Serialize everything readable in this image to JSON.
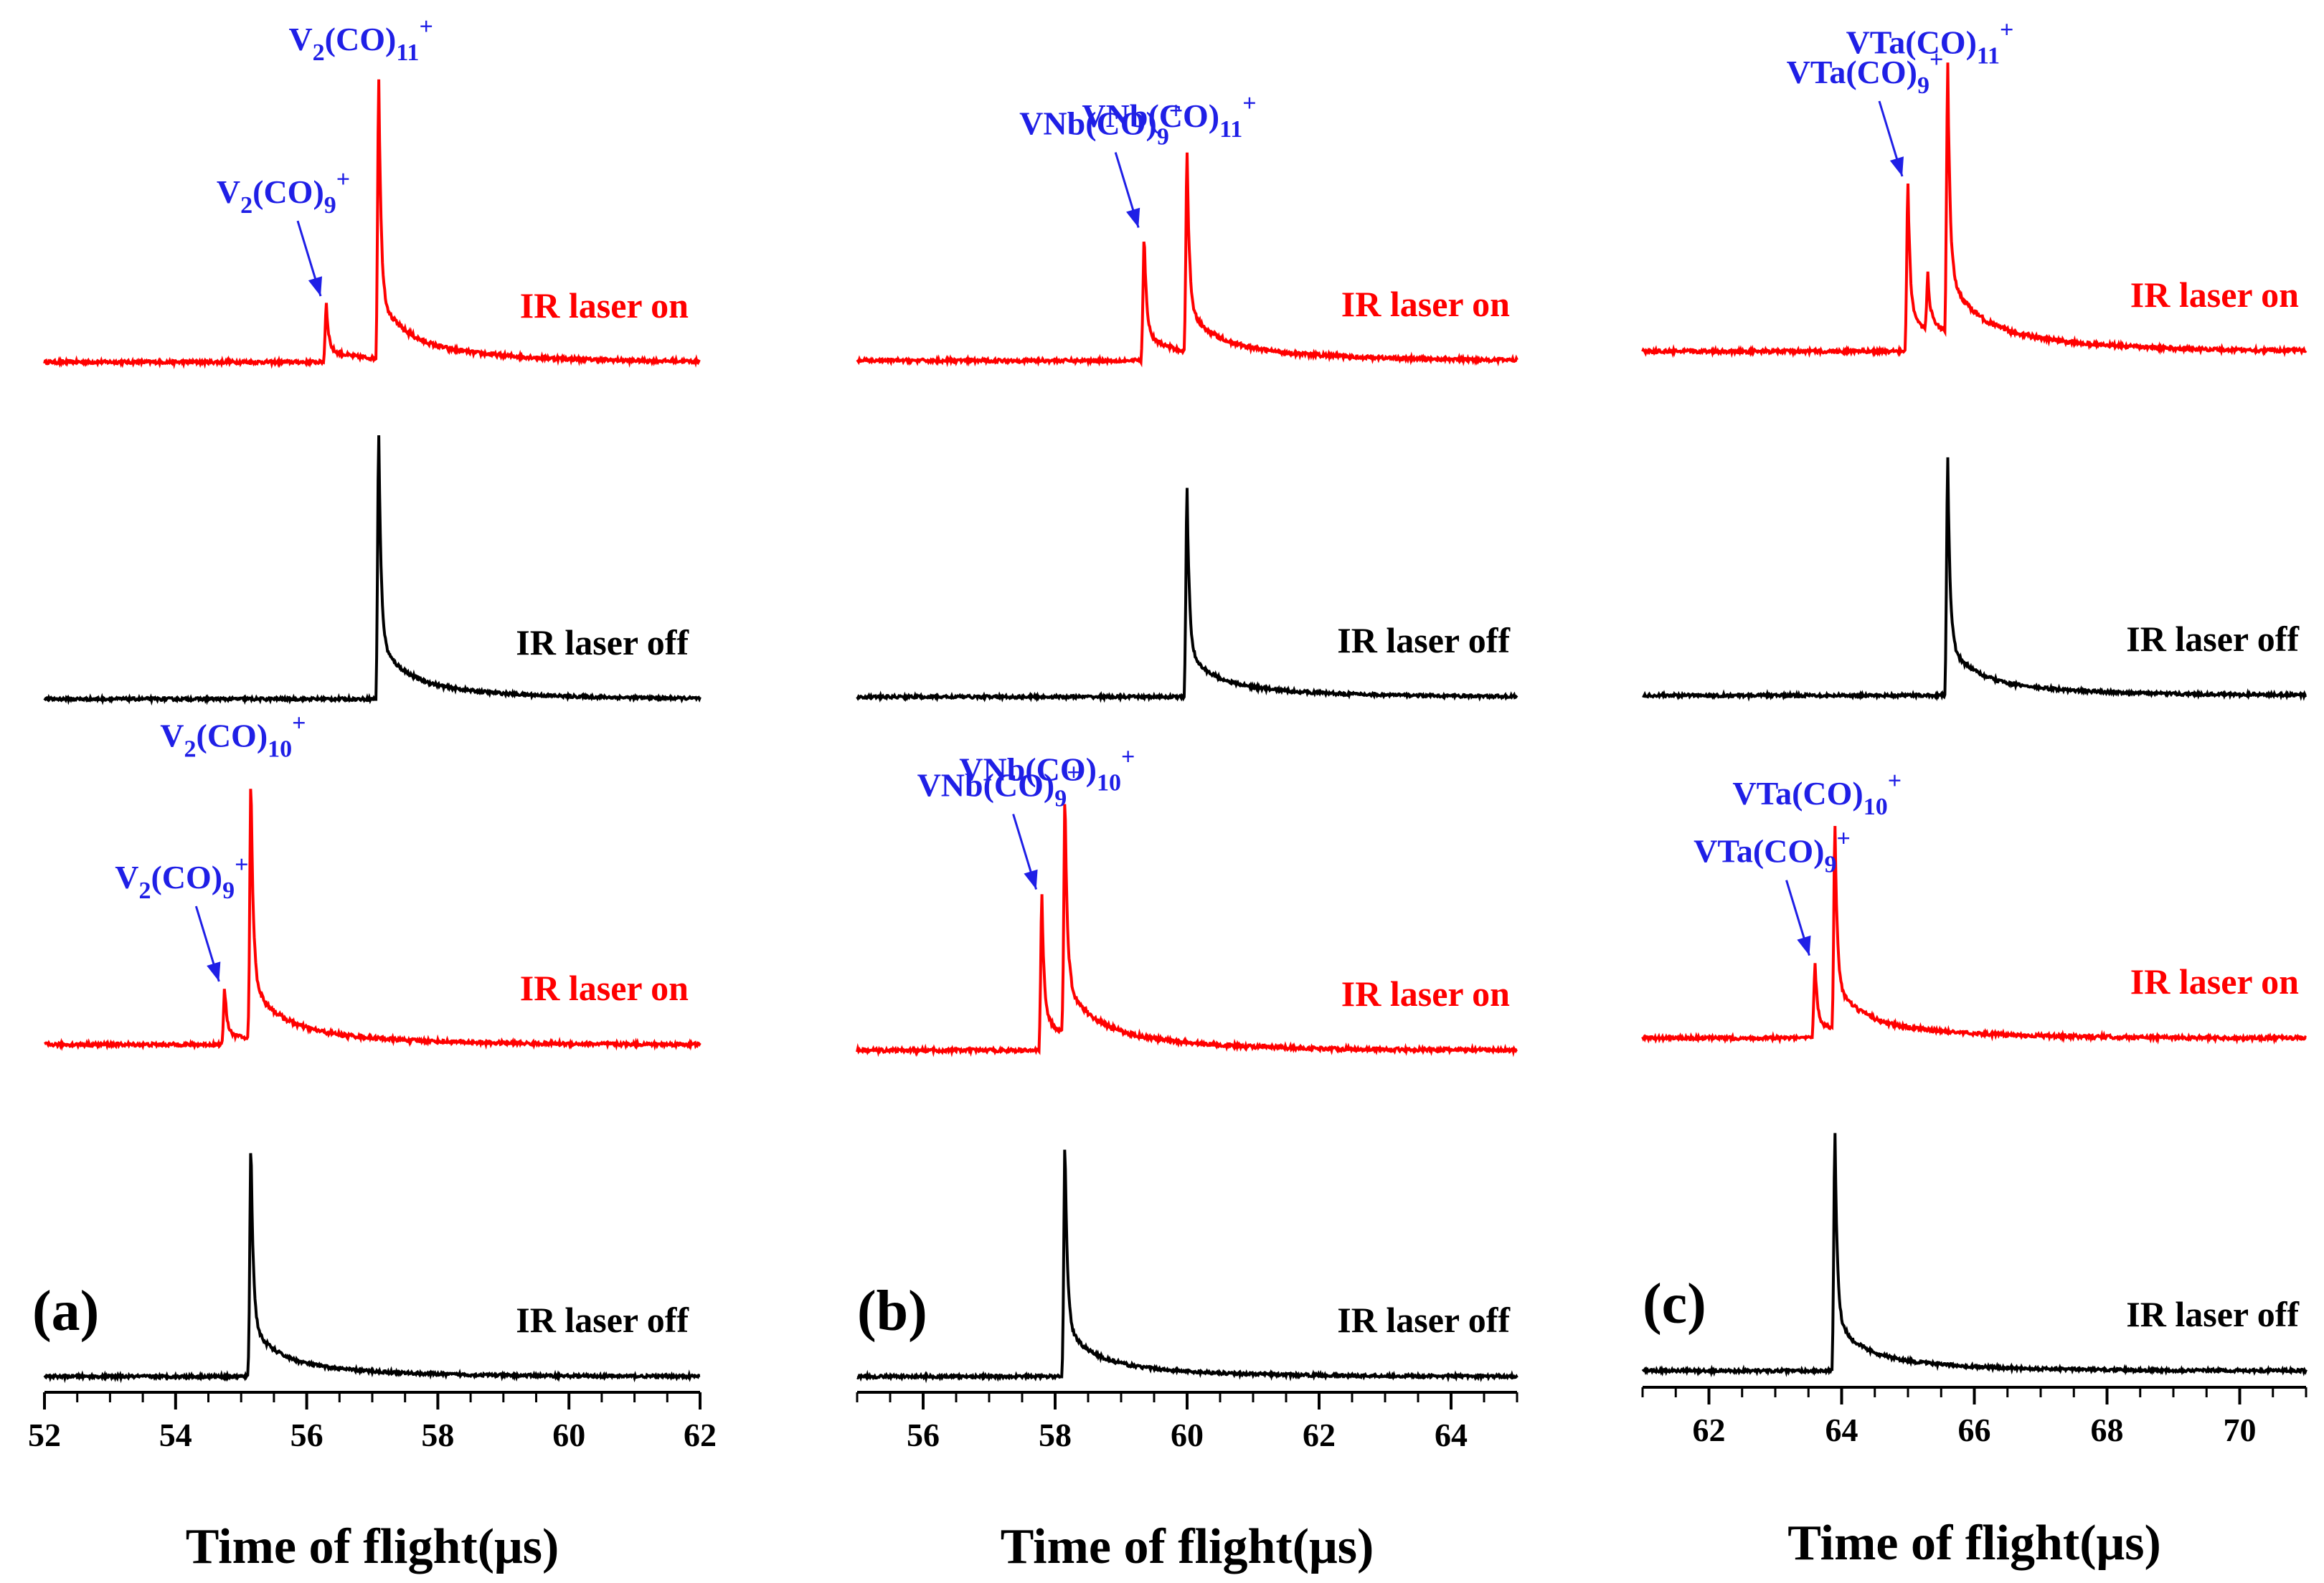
{
  "chart_data": [
    {
      "type": "line",
      "panel": "(a)",
      "xlabel": "Time of flight(μs)",
      "xlim": [
        52,
        62
      ],
      "xticks": [
        52,
        54,
        56,
        58,
        60,
        62
      ],
      "traces": [
        {
          "name": "IR laser on",
          "label": "IR laser on",
          "color": "#ff0000",
          "peaks": [
            {
              "x": 56.3,
              "h": 0.21
            },
            {
              "x": 57.1,
              "h": 1.0
            }
          ],
          "annotations": [
            {
              "formula": "V",
              "sub": "2",
              "mid": "(CO)",
              "sub2": "9",
              "sup": "+",
              "peak": 56.3,
              "arrow": true
            },
            {
              "formula": "V",
              "sub": "2",
              "mid": "(CO)",
              "sub2": "11",
              "sup": "+",
              "peak": 57.1,
              "arrow": false
            }
          ]
        },
        {
          "name": "IR laser off",
          "label": "IR laser off",
          "color": "#000000",
          "peaks": [
            {
              "x": 57.1,
              "h": 0.95
            }
          ],
          "annotations": []
        },
        {
          "name": "IR laser on",
          "label": "IR laser on",
          "color": "#ff0000",
          "peaks": [
            {
              "x": 54.75,
              "h": 0.2
            },
            {
              "x": 55.15,
              "h": 0.95
            }
          ],
          "annotations": [
            {
              "formula": "V",
              "sub": "2",
              "mid": "(CO)",
              "sub2": "9",
              "sup": "+",
              "peak": 54.75,
              "arrow": true
            },
            {
              "formula": "V",
              "sub": "2",
              "mid": "(CO)",
              "sub2": "10",
              "sup": "+",
              "peak": 55.15,
              "arrow": false
            }
          ]
        },
        {
          "name": "IR laser off",
          "label": "IR laser off",
          "color": "#000000",
          "peaks": [
            {
              "x": 55.15,
              "h": 0.85
            }
          ],
          "annotations": []
        }
      ]
    },
    {
      "type": "line",
      "panel": "(b)",
      "xlabel": "Time of flight(μs)",
      "xlim": [
        55,
        65
      ],
      "xticks": [
        56,
        58,
        60,
        62,
        64
      ],
      "traces": [
        {
          "name": "IR laser on",
          "label": "IR laser on",
          "color": "#ff0000",
          "peaks": [
            {
              "x": 59.35,
              "h": 0.45
            },
            {
              "x": 60.0,
              "h": 0.72
            }
          ],
          "annotations": [
            {
              "formula": "VNb",
              "sub": "",
              "mid": "(CO)",
              "sub2": "9",
              "sup": "+",
              "peak": 59.35,
              "arrow": true
            },
            {
              "formula": "VNb",
              "sub": "",
              "mid": "(CO)",
              "sub2": "11",
              "sup": "+",
              "peak": 60.0,
              "arrow": false
            }
          ]
        },
        {
          "name": "IR laser off",
          "label": "IR laser off",
          "color": "#000000",
          "peaks": [
            {
              "x": 60.0,
              "h": 0.75
            }
          ],
          "annotations": []
        },
        {
          "name": "IR laser on",
          "label": "IR laser on",
          "color": "#ff0000",
          "peaks": [
            {
              "x": 57.8,
              "h": 0.55
            },
            {
              "x": 58.15,
              "h": 0.85
            }
          ],
          "annotations": [
            {
              "formula": "VNb",
              "sub": "",
              "mid": "(CO)",
              "sub2": "9",
              "sup": "+",
              "peak": 57.8,
              "arrow": true
            },
            {
              "formula": "VNb",
              "sub": "",
              "mid": "(CO)",
              "sub2": "10",
              "sup": "+",
              "peak": 58.15,
              "arrow": false
            }
          ]
        },
        {
          "name": "IR laser off",
          "label": "IR laser off",
          "color": "#000000",
          "peaks": [
            {
              "x": 58.15,
              "h": 0.85
            }
          ],
          "annotations": []
        }
      ]
    },
    {
      "type": "line",
      "panel": "(c)",
      "xlabel": "Time of flight(μs)",
      "xlim": [
        61,
        71
      ],
      "xticks": [
        62,
        64,
        66,
        68,
        70
      ],
      "traces": [
        {
          "name": "IR laser on",
          "label": "IR laser on",
          "color": "#ff0000",
          "peaks": [
            {
              "x": 65.0,
              "h": 0.6
            },
            {
              "x": 65.3,
              "h": 0.2
            },
            {
              "x": 65.6,
              "h": 0.95
            }
          ],
          "annotations": [
            {
              "formula": "VTa",
              "sub": "",
              "mid": "(CO)",
              "sub2": "9",
              "sup": "+",
              "peak": 65.0,
              "arrow": true
            },
            {
              "formula": "VTa",
              "sub": "",
              "mid": "(CO)",
              "sub2": "11",
              "sup": "+",
              "peak": 65.6,
              "arrow": false
            }
          ]
        },
        {
          "name": "IR laser off",
          "label": "IR laser off",
          "color": "#000000",
          "peaks": [
            {
              "x": 65.6,
              "h": 0.85
            }
          ],
          "annotations": []
        },
        {
          "name": "IR laser on",
          "label": "IR laser on",
          "color": "#ff0000",
          "peaks": [
            {
              "x": 63.6,
              "h": 0.27
            },
            {
              "x": 63.9,
              "h": 0.72
            }
          ],
          "annotations": [
            {
              "formula": "VTa",
              "sub": "",
              "mid": "(CO)",
              "sub2": "9",
              "sup": "+",
              "peak": 63.6,
              "arrow": true
            },
            {
              "formula": "VTa",
              "sub": "",
              "mid": "(CO)",
              "sub2": "10",
              "sup": "+",
              "peak": 63.9,
              "arrow": false
            }
          ]
        },
        {
          "name": "IR laser off",
          "label": "IR laser off",
          "color": "#000000",
          "peaks": [
            {
              "x": 63.9,
              "h": 0.85
            }
          ],
          "annotations": []
        }
      ]
    }
  ]
}
